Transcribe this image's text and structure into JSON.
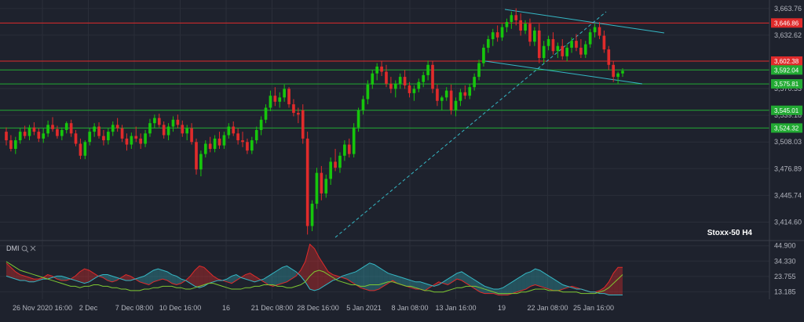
{
  "chart_data": {
    "type": "candlestick",
    "symbol_label": "Stoxx-50 H4",
    "x_ticks": [
      "26 Nov 2020 16:00",
      "2 Dec",
      "7 Dec 08:00",
      "10 Dec 16:00",
      "16",
      "21 Dec 08:00",
      "28 Dec 16:00",
      "5 Jan 2021",
      "8 Jan 08:00",
      "13 Jan 16:00",
      "19",
      "22 Jan 08:00",
      "25 Jan 16:00"
    ],
    "y_ticks": [
      "3,663.76",
      "3,632.62",
      "3,570.33",
      "3,539.18",
      "3,508.03",
      "3,476.89",
      "3,445.74",
      "3,414.60"
    ],
    "y_range": [
      3394,
      3670
    ],
    "horizontal_levels": [
      {
        "value": 3646.86,
        "label": "3,646.86",
        "color": "#e02b2b"
      },
      {
        "value": 3602.38,
        "label": "3,602.38",
        "color": "#e02b2b"
      },
      {
        "value": 3592.04,
        "label": "3,592.04",
        "color": "#22aa33"
      },
      {
        "value": 3575.81,
        "label": "3,575.81",
        "color": "#22aa33"
      },
      {
        "value": 3545.01,
        "label": "3,545.01",
        "color": "#22aa33"
      },
      {
        "value": 3524.32,
        "label": "3,524.32",
        "color": "#22aa33"
      }
    ],
    "up_color": "#16c60c",
    "down_color": "#e02b2b",
    "candles": [
      [
        3520,
        3525,
        3504,
        3510
      ],
      [
        3510,
        3516,
        3497,
        3500
      ],
      [
        3500,
        3514,
        3494,
        3510
      ],
      [
        3510,
        3524,
        3506,
        3520
      ],
      [
        3520,
        3527,
        3512,
        3515
      ],
      [
        3515,
        3528,
        3510,
        3525
      ],
      [
        3525,
        3531,
        3516,
        3520
      ],
      [
        3520,
        3524,
        3508,
        3512
      ],
      [
        3512,
        3524,
        3507,
        3518
      ],
      [
        3518,
        3533,
        3514,
        3528
      ],
      [
        3528,
        3537,
        3520,
        3523
      ],
      [
        3523,
        3527,
        3512,
        3515
      ],
      [
        3515,
        3525,
        3510,
        3522
      ],
      [
        3522,
        3532,
        3518,
        3530
      ],
      [
        3530,
        3534,
        3514,
        3518
      ],
      [
        3518,
        3522,
        3503,
        3506
      ],
      [
        3506,
        3512,
        3488,
        3492
      ],
      [
        3492,
        3510,
        3488,
        3508
      ],
      [
        3508,
        3524,
        3504,
        3520
      ],
      [
        3520,
        3530,
        3514,
        3526
      ],
      [
        3526,
        3531,
        3512,
        3515
      ],
      [
        3515,
        3522,
        3504,
        3510
      ],
      [
        3510,
        3524,
        3505,
        3520
      ],
      [
        3520,
        3532,
        3515,
        3528
      ],
      [
        3528,
        3536,
        3520,
        3524
      ],
      [
        3524,
        3528,
        3508,
        3512
      ],
      [
        3512,
        3518,
        3498,
        3505
      ],
      [
        3505,
        3519,
        3500,
        3515
      ],
      [
        3515,
        3526,
        3508,
        3512
      ],
      [
        3512,
        3518,
        3500,
        3506
      ],
      [
        3506,
        3522,
        3502,
        3518
      ],
      [
        3518,
        3535,
        3514,
        3530
      ],
      [
        3530,
        3540,
        3524,
        3536
      ],
      [
        3536,
        3541,
        3525,
        3528
      ],
      [
        3528,
        3532,
        3512,
        3516
      ],
      [
        3516,
        3530,
        3510,
        3526
      ],
      [
        3526,
        3538,
        3520,
        3534
      ],
      [
        3534,
        3540,
        3524,
        3528
      ],
      [
        3528,
        3533,
        3514,
        3518
      ],
      [
        3518,
        3528,
        3510,
        3524
      ],
      [
        3524,
        3530,
        3505,
        3508
      ],
      [
        3508,
        3512,
        3470,
        3476
      ],
      [
        3476,
        3498,
        3468,
        3494
      ],
      [
        3494,
        3510,
        3490,
        3506
      ],
      [
        3506,
        3514,
        3496,
        3500
      ],
      [
        3500,
        3516,
        3496,
        3512
      ],
      [
        3512,
        3520,
        3500,
        3504
      ],
      [
        3504,
        3520,
        3500,
        3516
      ],
      [
        3516,
        3530,
        3512,
        3526
      ],
      [
        3526,
        3532,
        3515,
        3518
      ],
      [
        3518,
        3524,
        3505,
        3510
      ],
      [
        3510,
        3520,
        3502,
        3508
      ],
      [
        3508,
        3512,
        3494,
        3498
      ],
      [
        3498,
        3514,
        3494,
        3510
      ],
      [
        3510,
        3526,
        3506,
        3522
      ],
      [
        3522,
        3538,
        3516,
        3534
      ],
      [
        3534,
        3552,
        3530,
        3548
      ],
      [
        3548,
        3568,
        3544,
        3562
      ],
      [
        3562,
        3572,
        3550,
        3555
      ],
      [
        3555,
        3566,
        3548,
        3560
      ],
      [
        3560,
        3575,
        3555,
        3570
      ],
      [
        3570,
        3572,
        3548,
        3552
      ],
      [
        3552,
        3558,
        3538,
        3542
      ],
      [
        3542,
        3548,
        3530,
        3540
      ],
      [
        3545,
        3552,
        3506,
        3512
      ],
      [
        3512,
        3520,
        3400,
        3410
      ],
      [
        3410,
        3440,
        3404,
        3436
      ],
      [
        3436,
        3478,
        3430,
        3472
      ],
      [
        3472,
        3480,
        3440,
        3448
      ],
      [
        3448,
        3470,
        3443,
        3465
      ],
      [
        3465,
        3490,
        3458,
        3485
      ],
      [
        3485,
        3500,
        3474,
        3478
      ],
      [
        3478,
        3496,
        3472,
        3492
      ],
      [
        3492,
        3510,
        3486,
        3505
      ],
      [
        3505,
        3512,
        3490,
        3494
      ],
      [
        3494,
        3530,
        3490,
        3525
      ],
      [
        3525,
        3548,
        3520,
        3545
      ],
      [
        3545,
        3562,
        3540,
        3558
      ],
      [
        3558,
        3580,
        3552,
        3575
      ],
      [
        3575,
        3592,
        3570,
        3588
      ],
      [
        3588,
        3600,
        3580,
        3596
      ],
      [
        3596,
        3602,
        3585,
        3590
      ],
      [
        3590,
        3598,
        3572,
        3576
      ],
      [
        3576,
        3584,
        3565,
        3570
      ],
      [
        3570,
        3580,
        3560,
        3576
      ],
      [
        3576,
        3588,
        3570,
        3584
      ],
      [
        3584,
        3592,
        3570,
        3574
      ],
      [
        3574,
        3578,
        3560,
        3565
      ],
      [
        3565,
        3574,
        3556,
        3570
      ],
      [
        3570,
        3582,
        3566,
        3578
      ],
      [
        3578,
        3590,
        3572,
        3586
      ],
      [
        3586,
        3603,
        3580,
        3598
      ],
      [
        3598,
        3602,
        3565,
        3570
      ],
      [
        3570,
        3575,
        3550,
        3556
      ],
      [
        3556,
        3562,
        3545,
        3560
      ],
      [
        3560,
        3572,
        3556,
        3568
      ],
      [
        3568,
        3575,
        3540,
        3545
      ],
      [
        3545,
        3560,
        3538,
        3556
      ],
      [
        3556,
        3570,
        3550,
        3566
      ],
      [
        3566,
        3574,
        3558,
        3562
      ],
      [
        3562,
        3576,
        3558,
        3572
      ],
      [
        3572,
        3588,
        3568,
        3584
      ],
      [
        3584,
        3604,
        3580,
        3600
      ],
      [
        3600,
        3622,
        3596,
        3618
      ],
      [
        3618,
        3632,
        3612,
        3628
      ],
      [
        3628,
        3640,
        3620,
        3636
      ],
      [
        3636,
        3644,
        3625,
        3630
      ],
      [
        3630,
        3646,
        3626,
        3642
      ],
      [
        3642,
        3652,
        3636,
        3648
      ],
      [
        3648,
        3660,
        3640,
        3656
      ],
      [
        3656,
        3664,
        3644,
        3650
      ],
      [
        3650,
        3658,
        3632,
        3638
      ],
      [
        3638,
        3650,
        3634,
        3646
      ],
      [
        3646,
        3652,
        3620,
        3625
      ],
      [
        3625,
        3642,
        3620,
        3638
      ],
      [
        3638,
        3646,
        3600,
        3606
      ],
      [
        3606,
        3626,
        3600,
        3620
      ],
      [
        3620,
        3632,
        3615,
        3628
      ],
      [
        3628,
        3636,
        3610,
        3614
      ],
      [
        3614,
        3624,
        3606,
        3620
      ],
      [
        3620,
        3628,
        3604,
        3608
      ],
      [
        3608,
        3622,
        3602,
        3618
      ],
      [
        3618,
        3630,
        3612,
        3626
      ],
      [
        3626,
        3634,
        3614,
        3618
      ],
      [
        3618,
        3628,
        3606,
        3610
      ],
      [
        3610,
        3626,
        3606,
        3622
      ],
      [
        3622,
        3640,
        3618,
        3636
      ],
      [
        3636,
        3646,
        3630,
        3642
      ],
      [
        3642,
        3648,
        3628,
        3632
      ],
      [
        3632,
        3638,
        3612,
        3616
      ],
      [
        3616,
        3620,
        3592,
        3598
      ],
      [
        3598,
        3602,
        3578,
        3584
      ],
      [
        3584,
        3590,
        3576,
        3588
      ],
      [
        3588,
        3594,
        3584,
        3591
      ]
    ],
    "indicator": {
      "label": "DMI",
      "y_ticks": [
        "44.900",
        "34.330",
        "23.755",
        "13.185"
      ],
      "y_range": [
        8,
        48
      ],
      "series": [
        {
          "color": "#e02b2b",
          "values": [
            33,
            30,
            27,
            25,
            24,
            23,
            22,
            22,
            23,
            25,
            24,
            22,
            21,
            21,
            22,
            24,
            27,
            29,
            28,
            26,
            24,
            23,
            21,
            20,
            21,
            23,
            25,
            24,
            22,
            20,
            19,
            18,
            20,
            21,
            22,
            21,
            19,
            18,
            19,
            21,
            24,
            28,
            31,
            30,
            27,
            24,
            22,
            21,
            20,
            19,
            21,
            23,
            25,
            26,
            24,
            22,
            20,
            18,
            17,
            18,
            19,
            20,
            22,
            24,
            28,
            34,
            46,
            43,
            37,
            32,
            27,
            25,
            24,
            23,
            22,
            20,
            18,
            16,
            15,
            14,
            14,
            15,
            17,
            19,
            21,
            19,
            18,
            17,
            16,
            15,
            15,
            14,
            16,
            18,
            20,
            19,
            18,
            20,
            22,
            21,
            19,
            17,
            15,
            13,
            12,
            12,
            12,
            11,
            11,
            11,
            12,
            13,
            14,
            15,
            17,
            18,
            17,
            16,
            15,
            14,
            14,
            15,
            16,
            17,
            16,
            15,
            14,
            13,
            13,
            14,
            16,
            20,
            26,
            30,
            30
          ]
        },
        {
          "color": "#35b8c5",
          "values": [
            24,
            23,
            22,
            21,
            21,
            20,
            20,
            21,
            22,
            22,
            23,
            24,
            24,
            23,
            22,
            21,
            20,
            19,
            20,
            22,
            24,
            25,
            25,
            24,
            23,
            22,
            21,
            21,
            22,
            23,
            24,
            26,
            28,
            29,
            28,
            27,
            25,
            24,
            22,
            21,
            19,
            17,
            16,
            17,
            19,
            20,
            21,
            21,
            22,
            24,
            25,
            23,
            22,
            21,
            20,
            21,
            22,
            24,
            26,
            28,
            30,
            31,
            29,
            27,
            24,
            20,
            15,
            14,
            15,
            17,
            19,
            21,
            22,
            24,
            25,
            26,
            27,
            29,
            31,
            33,
            32,
            30,
            28,
            26,
            25,
            24,
            23,
            22,
            21,
            20,
            20,
            19,
            18,
            17,
            18,
            20,
            22,
            24,
            26,
            27,
            25,
            23,
            21,
            19,
            17,
            16,
            15,
            15,
            16,
            18,
            20,
            22,
            24,
            26,
            27,
            29,
            28,
            26,
            24,
            22,
            20,
            18,
            17,
            16,
            15,
            15,
            14,
            13,
            13,
            12,
            12,
            11,
            11,
            11,
            11
          ]
        },
        {
          "color": "#7ec832",
          "values": [
            34,
            32,
            30,
            28,
            27,
            26,
            25,
            24,
            23,
            22,
            21,
            20,
            19,
            18,
            17,
            17,
            16,
            17,
            17,
            18,
            18,
            17,
            17,
            16,
            16,
            15,
            15,
            14,
            14,
            14,
            15,
            15,
            16,
            16,
            17,
            17,
            17,
            16,
            16,
            15,
            15,
            16,
            17,
            18,
            19,
            19,
            18,
            17,
            16,
            15,
            15,
            15,
            16,
            16,
            17,
            17,
            18,
            18,
            18,
            17,
            17,
            16,
            16,
            17,
            18,
            20,
            24,
            27,
            28,
            27,
            25,
            23,
            21,
            20,
            19,
            18,
            18,
            17,
            17,
            18,
            18,
            18,
            19,
            20,
            20,
            19,
            18,
            17,
            17,
            16,
            15,
            14,
            14,
            13,
            13,
            13,
            14,
            15,
            16,
            16,
            17,
            17,
            17,
            16,
            15,
            14,
            13,
            12,
            12,
            12,
            12,
            12,
            13,
            13,
            14,
            15,
            15,
            15,
            14,
            14,
            14,
            13,
            13,
            13,
            13,
            12,
            12,
            12,
            12,
            13,
            14,
            16,
            19,
            22,
            25
          ]
        }
      ]
    }
  }
}
